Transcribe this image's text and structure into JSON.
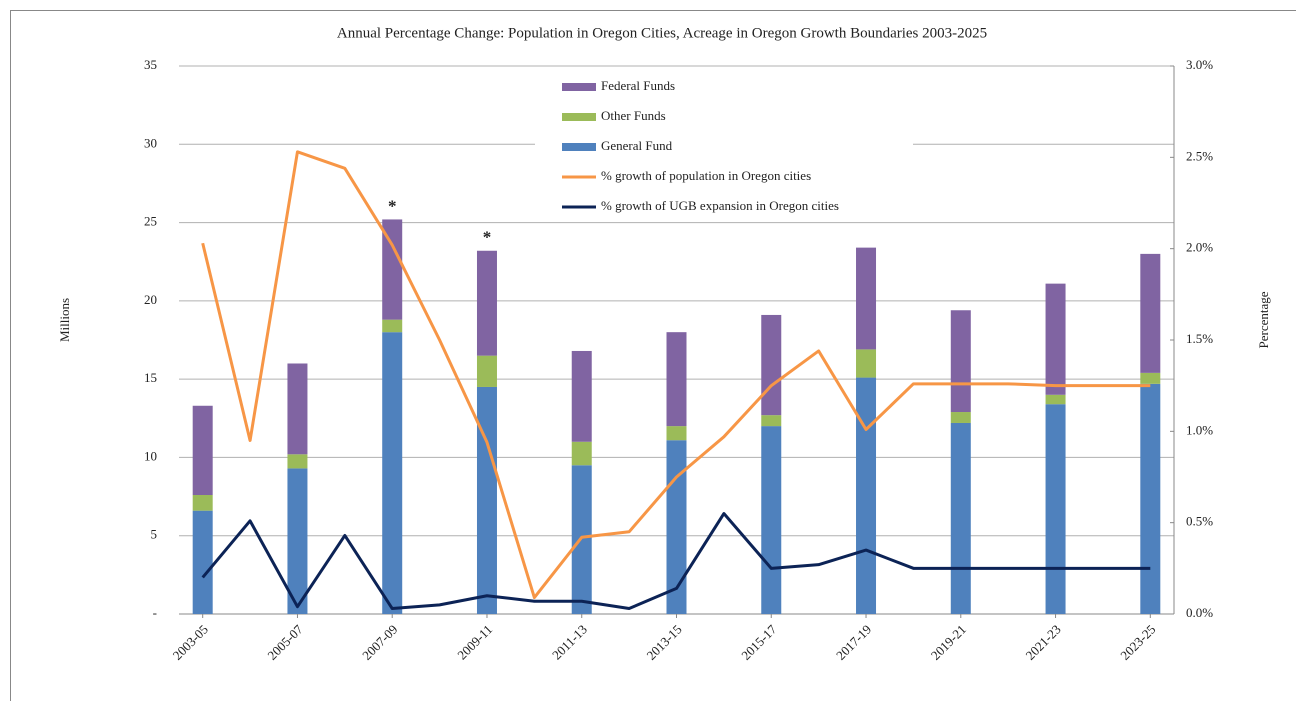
{
  "chart_data": {
    "type": "bar",
    "title": "Annual Percentage Change:  Population in Oregon Cities, Acreage in Oregon Growth Boundaries 2003-2025",
    "y_label": "Millions",
    "y2_label": "Percentage",
    "categories": [
      "2003-05",
      null,
      "2005-07",
      null,
      "2007-09",
      null,
      "2009-11",
      null,
      "2011-13",
      null,
      "2013-15",
      null,
      "2015-17",
      null,
      "2017-19",
      null,
      "2019-21",
      null,
      "2021-23",
      null,
      "2023-25"
    ],
    "series": [
      {
        "name": "General Fund",
        "color": "#4f81bd",
        "values": [
          6.6,
          null,
          9.3,
          null,
          18.0,
          null,
          14.5,
          null,
          9.5,
          null,
          11.1,
          null,
          12.0,
          null,
          15.1,
          null,
          12.2,
          null,
          13.4,
          null,
          14.7
        ]
      },
      {
        "name": "Other Funds",
        "color": "#9bbb59",
        "values": [
          1.0,
          null,
          0.9,
          null,
          0.8,
          null,
          2.0,
          null,
          1.5,
          null,
          0.9,
          null,
          0.7,
          null,
          1.8,
          null,
          0.7,
          null,
          0.6,
          null,
          0.7
        ]
      },
      {
        "name": "Federal Funds",
        "color": "#8064a2",
        "values": [
          5.7,
          null,
          5.8,
          null,
          6.4,
          null,
          6.7,
          null,
          5.8,
          null,
          6.0,
          null,
          6.4,
          null,
          6.5,
          null,
          6.5,
          null,
          7.1,
          null,
          7.6
        ]
      },
      {
        "name": "% growth of population in Oregon cities",
        "color": "#f79646",
        "type": "line",
        "axis": "y2",
        "values": [
          2.03,
          0.95,
          2.53,
          2.44,
          2.02,
          1.5,
          0.94,
          0.09,
          0.42,
          0.45,
          0.75,
          0.97,
          1.25,
          1.44,
          1.01,
          1.26,
          1.26,
          1.26,
          1.25,
          1.25,
          1.25
        ]
      },
      {
        "name": "% growth of UGB expansion in Oregon cities",
        "color": "#0c2356",
        "type": "line",
        "axis": "y2",
        "values": [
          0.2,
          0.51,
          0.04,
          0.43,
          0.03,
          0.05,
          0.1,
          0.07,
          0.07,
          0.03,
          0.14,
          0.55,
          0.25,
          0.27,
          0.35,
          0.25,
          0.25,
          0.25,
          0.25,
          0.25,
          0.25
        ]
      }
    ],
    "annotations": [
      {
        "text": "*",
        "category": 4
      },
      {
        "text": "*",
        "category": 6
      }
    ],
    "ylim": [
      0,
      35
    ],
    "yticks": [
      {
        "value": 0,
        "label": "-"
      },
      5,
      10,
      15,
      20,
      25,
      30,
      35
    ],
    "y2lim": [
      0,
      3
    ],
    "y2ticks": [
      {
        "value": 0,
        "label": "0.0%"
      },
      {
        "value": 0.5,
        "label": "0.5%"
      },
      {
        "value": 1,
        "label": "1.0%"
      },
      {
        "value": 1.5,
        "label": "1.5%"
      },
      {
        "value": 2,
        "label": "2.0%"
      },
      {
        "value": 2.5,
        "label": "2.5%"
      },
      {
        "value": 3,
        "label": "3.0%"
      }
    ],
    "grid": true
  }
}
